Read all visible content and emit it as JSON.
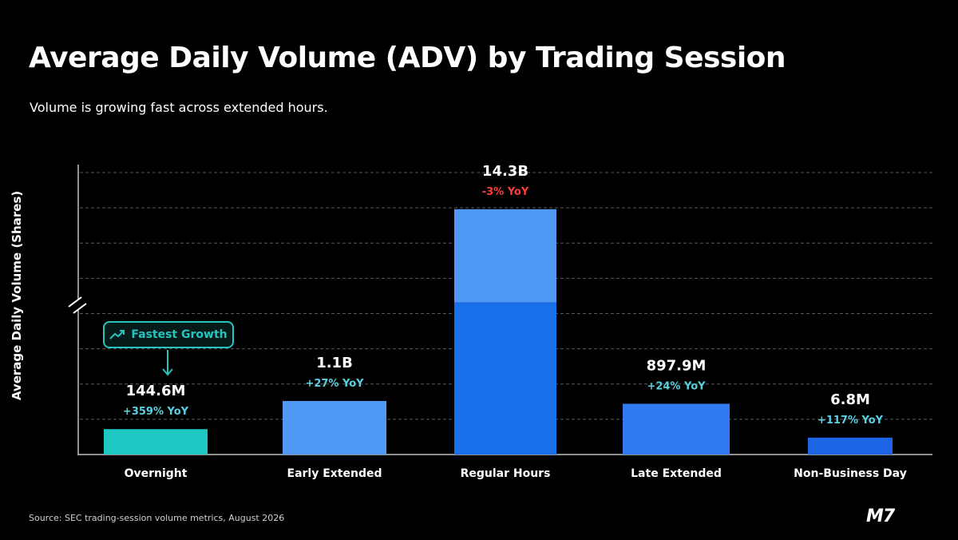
{
  "page": {
    "title": "Average Daily Volume (ADV) by Trading Session",
    "subtitle": "Volume is growing fast across extended hours.",
    "source": "Source: SEC trading-session volume metrics, August 2026",
    "logo_text": "M7"
  },
  "callout": {
    "label": "Fastest Growth",
    "icon": "trending-up-icon",
    "target_category": "Overnight"
  },
  "colors": {
    "background": "#000000",
    "overnight": "#1ec9c3",
    "light_blue": "#4f99f5",
    "regular_lower": "#1a6fea",
    "mid_blue": "#2f7bef",
    "dark_blue": "#1c66e6",
    "positive_yoy": "#5ad0e0",
    "negative_yoy": "#ff3b3b",
    "callout": "#27c4bf"
  },
  "chart_data": {
    "type": "bar",
    "title": "Average Daily Volume (ADV) by Trading Session",
    "subtitle": "Volume is growing fast across extended hours.",
    "ylabel": "Average Daily Volume (Shares)",
    "xlabel": "",
    "y_axis_break": true,
    "grid": "horizontal dashed",
    "categories": [
      "Overnight",
      "Early Extended",
      "Regular Hours",
      "Late Extended",
      "Non-Business Day"
    ],
    "values_shares": [
      144600000,
      1100000000,
      14300000000,
      897900000,
      6800000
    ],
    "value_labels": [
      "144.6M",
      "1.1B",
      "14.3B",
      "897.9M",
      "6.8M"
    ],
    "yoy_change_percent": [
      359,
      27,
      -3,
      24,
      117
    ],
    "yoy_labels": [
      "+359% YoY",
      "+27% YoY",
      "-3% YoY",
      "+24% YoY",
      "+117% YoY"
    ],
    "bar_colors": [
      "#1ec9c3",
      "#4f99f5",
      "#1a6fea",
      "#2f7bef",
      "#1c66e6"
    ],
    "regular_hours_top_segment_color": "#4f99f5",
    "visual_scale_note": "axis broken; bars not proportional",
    "visual_bar_level": [
      0.09,
      0.19,
      0.87,
      0.18,
      0.06
    ]
  }
}
